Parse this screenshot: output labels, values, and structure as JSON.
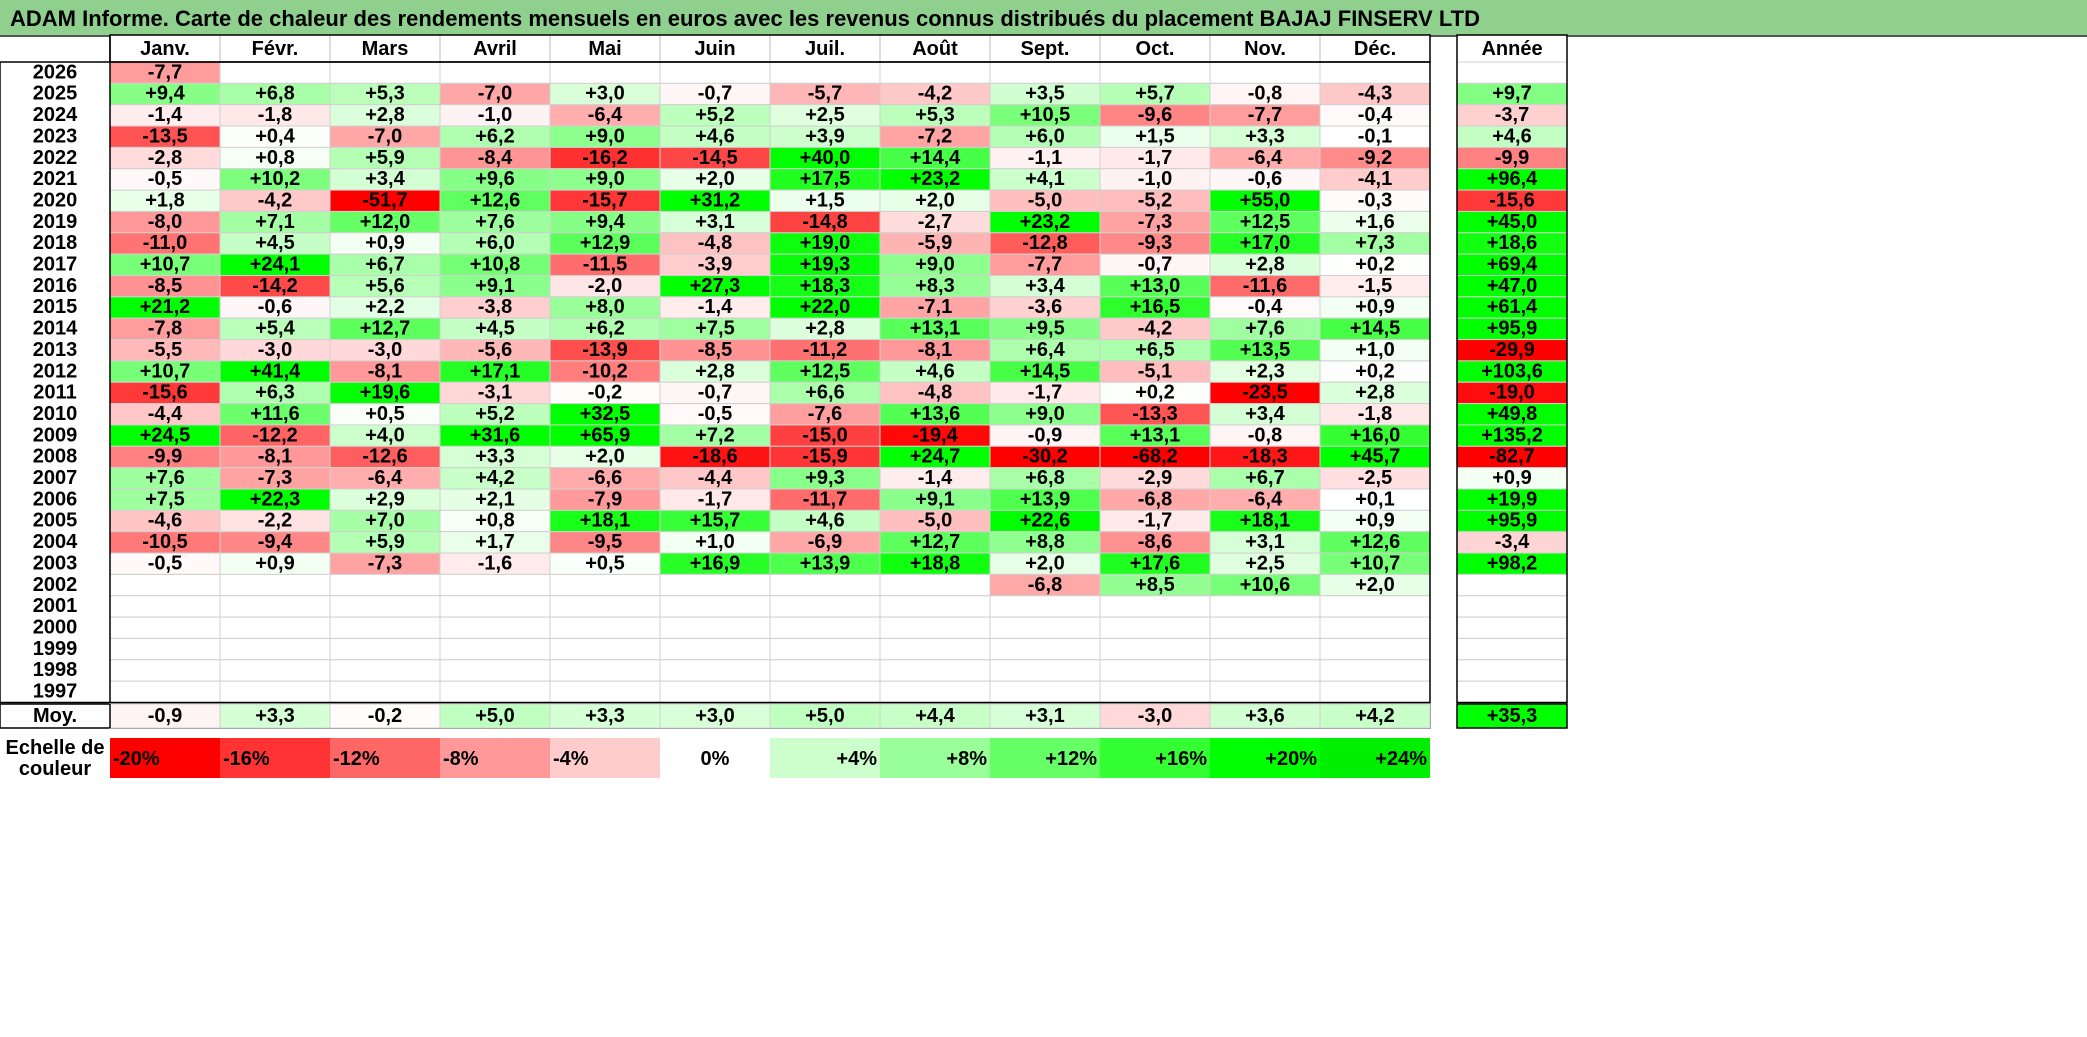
{
  "title": "ADAM Informe. Carte de chaleur des rendements mensuels en euros avec les revenus connus distribués du placement BAJAJ FINSERV LTD",
  "chart_data": {
    "type": "heatmap",
    "months": [
      "Janv.",
      "Févr.",
      "Mars",
      "Avril",
      "Mai",
      "Juin",
      "Juil.",
      "Août",
      "Sept.",
      "Oct.",
      "Nov.",
      "Déc."
    ],
    "year_header": "Année",
    "avg_label": "Moy.",
    "rows": [
      {
        "year": "2026",
        "months": [
          -7.7,
          null,
          null,
          null,
          null,
          null,
          null,
          null,
          null,
          null,
          null,
          null
        ],
        "annual": null
      },
      {
        "year": "2025",
        "months": [
          9.4,
          6.8,
          5.3,
          -7.0,
          3.0,
          -0.7,
          -5.7,
          -4.2,
          3.5,
          5.7,
          -0.8,
          -4.3
        ],
        "annual": 9.7
      },
      {
        "year": "2024",
        "months": [
          -1.4,
          -1.8,
          2.8,
          -1.0,
          -6.4,
          5.2,
          2.5,
          5.3,
          10.5,
          -9.6,
          -7.7,
          -0.4
        ],
        "annual": -3.7
      },
      {
        "year": "2023",
        "months": [
          -13.5,
          0.4,
          -7.0,
          6.2,
          9.0,
          4.6,
          3.9,
          -7.2,
          6.0,
          1.5,
          3.3,
          -0.1
        ],
        "annual": 4.6
      },
      {
        "year": "2022",
        "months": [
          -2.8,
          0.8,
          5.9,
          -8.4,
          -16.2,
          -14.5,
          40.0,
          14.4,
          -1.1,
          -1.7,
          -6.4,
          -9.2
        ],
        "annual": -9.9
      },
      {
        "year": "2021",
        "months": [
          -0.5,
          10.2,
          3.4,
          9.6,
          9.0,
          2.0,
          17.5,
          23.2,
          4.1,
          -1.0,
          -0.6,
          -4.1
        ],
        "annual": 96.4
      },
      {
        "year": "2020",
        "months": [
          1.8,
          -4.2,
          -51.7,
          12.6,
          -15.7,
          31.2,
          1.5,
          2.0,
          -5.0,
          -5.2,
          55.0,
          -0.3
        ],
        "annual": -15.6
      },
      {
        "year": "2019",
        "months": [
          -8.0,
          7.1,
          12.0,
          7.6,
          9.4,
          3.1,
          -14.8,
          -2.7,
          23.2,
          -7.3,
          12.5,
          1.6
        ],
        "annual": 45.0
      },
      {
        "year": "2018",
        "months": [
          -11.0,
          4.5,
          0.9,
          6.0,
          12.9,
          -4.8,
          19.0,
          -5.9,
          -12.8,
          -9.3,
          17.0,
          7.3
        ],
        "annual": 18.6
      },
      {
        "year": "2017",
        "months": [
          10.7,
          24.1,
          6.7,
          10.8,
          -11.5,
          -3.9,
          19.3,
          9.0,
          -7.7,
          -0.7,
          2.8,
          0.2
        ],
        "annual": 69.4
      },
      {
        "year": "2016",
        "months": [
          -8.5,
          -14.2,
          5.6,
          9.1,
          -2.0,
          27.3,
          18.3,
          8.3,
          3.4,
          13.0,
          -11.6,
          -1.5
        ],
        "annual": 47.0
      },
      {
        "year": "2015",
        "months": [
          21.2,
          -0.6,
          2.2,
          -3.8,
          8.0,
          -1.4,
          22.0,
          -7.1,
          -3.6,
          16.5,
          -0.4,
          0.9
        ],
        "annual": 61.4
      },
      {
        "year": "2014",
        "months": [
          -7.8,
          5.4,
          12.7,
          4.5,
          6.2,
          7.5,
          2.8,
          13.1,
          9.5,
          -4.2,
          7.6,
          14.5
        ],
        "annual": 95.9
      },
      {
        "year": "2013",
        "months": [
          -5.5,
          -3.0,
          -3.0,
          -5.6,
          -13.9,
          -8.5,
          -11.2,
          -8.1,
          6.4,
          6.5,
          13.5,
          1.0
        ],
        "annual": -29.9
      },
      {
        "year": "2012",
        "months": [
          10.7,
          41.4,
          -8.1,
          17.1,
          -10.2,
          2.8,
          12.5,
          4.6,
          14.5,
          -5.1,
          2.3,
          0.2
        ],
        "annual": 103.6
      },
      {
        "year": "2011",
        "months": [
          -15.6,
          6.3,
          19.6,
          -3.1,
          -0.2,
          -0.7,
          6.6,
          -4.8,
          -1.7,
          0.2,
          -23.5,
          2.8
        ],
        "annual": -19.0
      },
      {
        "year": "2010",
        "months": [
          -4.4,
          11.6,
          0.5,
          5.2,
          32.5,
          -0.5,
          -7.6,
          13.6,
          9.0,
          -13.3,
          3.4,
          -1.8
        ],
        "annual": 49.8
      },
      {
        "year": "2009",
        "months": [
          24.5,
          -12.2,
          4.0,
          31.6,
          65.9,
          7.2,
          -15.0,
          -19.4,
          -0.9,
          13.1,
          -0.8,
          16.0
        ],
        "annual": 135.2
      },
      {
        "year": "2008",
        "months": [
          -9.9,
          -8.1,
          -12.6,
          3.3,
          2.0,
          -18.6,
          -15.9,
          24.7,
          -30.2,
          -68.2,
          -18.3,
          45.7
        ],
        "annual": -82.7
      },
      {
        "year": "2007",
        "months": [
          7.6,
          -7.3,
          -6.4,
          4.2,
          -6.6,
          -4.4,
          9.3,
          -1.4,
          6.8,
          -2.9,
          6.7,
          -2.5
        ],
        "annual": 0.9
      },
      {
        "year": "2006",
        "months": [
          7.5,
          22.3,
          2.9,
          2.1,
          -7.9,
          -1.7,
          -11.7,
          9.1,
          13.9,
          -6.8,
          -6.4,
          0.1
        ],
        "annual": 19.9
      },
      {
        "year": "2005",
        "months": [
          -4.6,
          -2.2,
          7.0,
          0.8,
          18.1,
          15.7,
          4.6,
          -5.0,
          22.6,
          -1.7,
          18.1,
          0.9
        ],
        "annual": 95.9
      },
      {
        "year": "2004",
        "months": [
          -10.5,
          -9.4,
          5.9,
          1.7,
          -9.5,
          1.0,
          -6.9,
          12.7,
          8.8,
          -8.6,
          3.1,
          12.6
        ],
        "annual": -3.4
      },
      {
        "year": "2003",
        "months": [
          -0.5,
          0.9,
          -7.3,
          -1.6,
          0.5,
          16.9,
          13.9,
          18.8,
          2.0,
          17.6,
          2.5,
          10.7
        ],
        "annual": 98.2
      },
      {
        "year": "2002",
        "months": [
          null,
          null,
          null,
          null,
          null,
          null,
          null,
          null,
          -6.8,
          8.5,
          10.6,
          2.0
        ],
        "annual": null
      },
      {
        "year": "2001",
        "months": [
          null,
          null,
          null,
          null,
          null,
          null,
          null,
          null,
          null,
          null,
          null,
          null
        ],
        "annual": null
      },
      {
        "year": "2000",
        "months": [
          null,
          null,
          null,
          null,
          null,
          null,
          null,
          null,
          null,
          null,
          null,
          null
        ],
        "annual": null
      },
      {
        "year": "1999",
        "months": [
          null,
          null,
          null,
          null,
          null,
          null,
          null,
          null,
          null,
          null,
          null,
          null
        ],
        "annual": null
      },
      {
        "year": "1998",
        "months": [
          null,
          null,
          null,
          null,
          null,
          null,
          null,
          null,
          null,
          null,
          null,
          null
        ],
        "annual": null
      },
      {
        "year": "1997",
        "months": [
          null,
          null,
          null,
          null,
          null,
          null,
          null,
          null,
          null,
          null,
          null,
          null
        ],
        "annual": null
      }
    ],
    "averages": [
      -0.9,
      3.3,
      -0.2,
      5.0,
      3.3,
      3.0,
      5.0,
      4.4,
      3.1,
      -3.0,
      3.6,
      4.2
    ],
    "annual_average": 35.3,
    "scale_label_line1": "Echelle de",
    "scale_label_line2": "couleur",
    "scale": [
      {
        "label": "-20%",
        "value": -20,
        "color": "#ff0000"
      },
      {
        "label": "-16%",
        "value": -16,
        "color": "#ff3333"
      },
      {
        "label": "-12%",
        "value": -12,
        "color": "#ff6666"
      },
      {
        "label": "-8%",
        "value": -8,
        "color": "#ff9999"
      },
      {
        "label": "-4%",
        "value": -4,
        "color": "#ffcccc"
      },
      {
        "label": "0%",
        "value": 0,
        "color": "#ffffff"
      },
      {
        "label": "+4%",
        "value": 4,
        "color": "#ccffcc"
      },
      {
        "label": "+8%",
        "value": 8,
        "color": "#99ff99"
      },
      {
        "label": "+12%",
        "value": 12,
        "color": "#66ff66"
      },
      {
        "label": "+16%",
        "value": 16,
        "color": "#33ff33"
      },
      {
        "label": "+20%",
        "value": 20,
        "color": "#00ff00"
      },
      {
        "label": "+24%",
        "value": 24,
        "color": "#00ee00"
      }
    ]
  }
}
